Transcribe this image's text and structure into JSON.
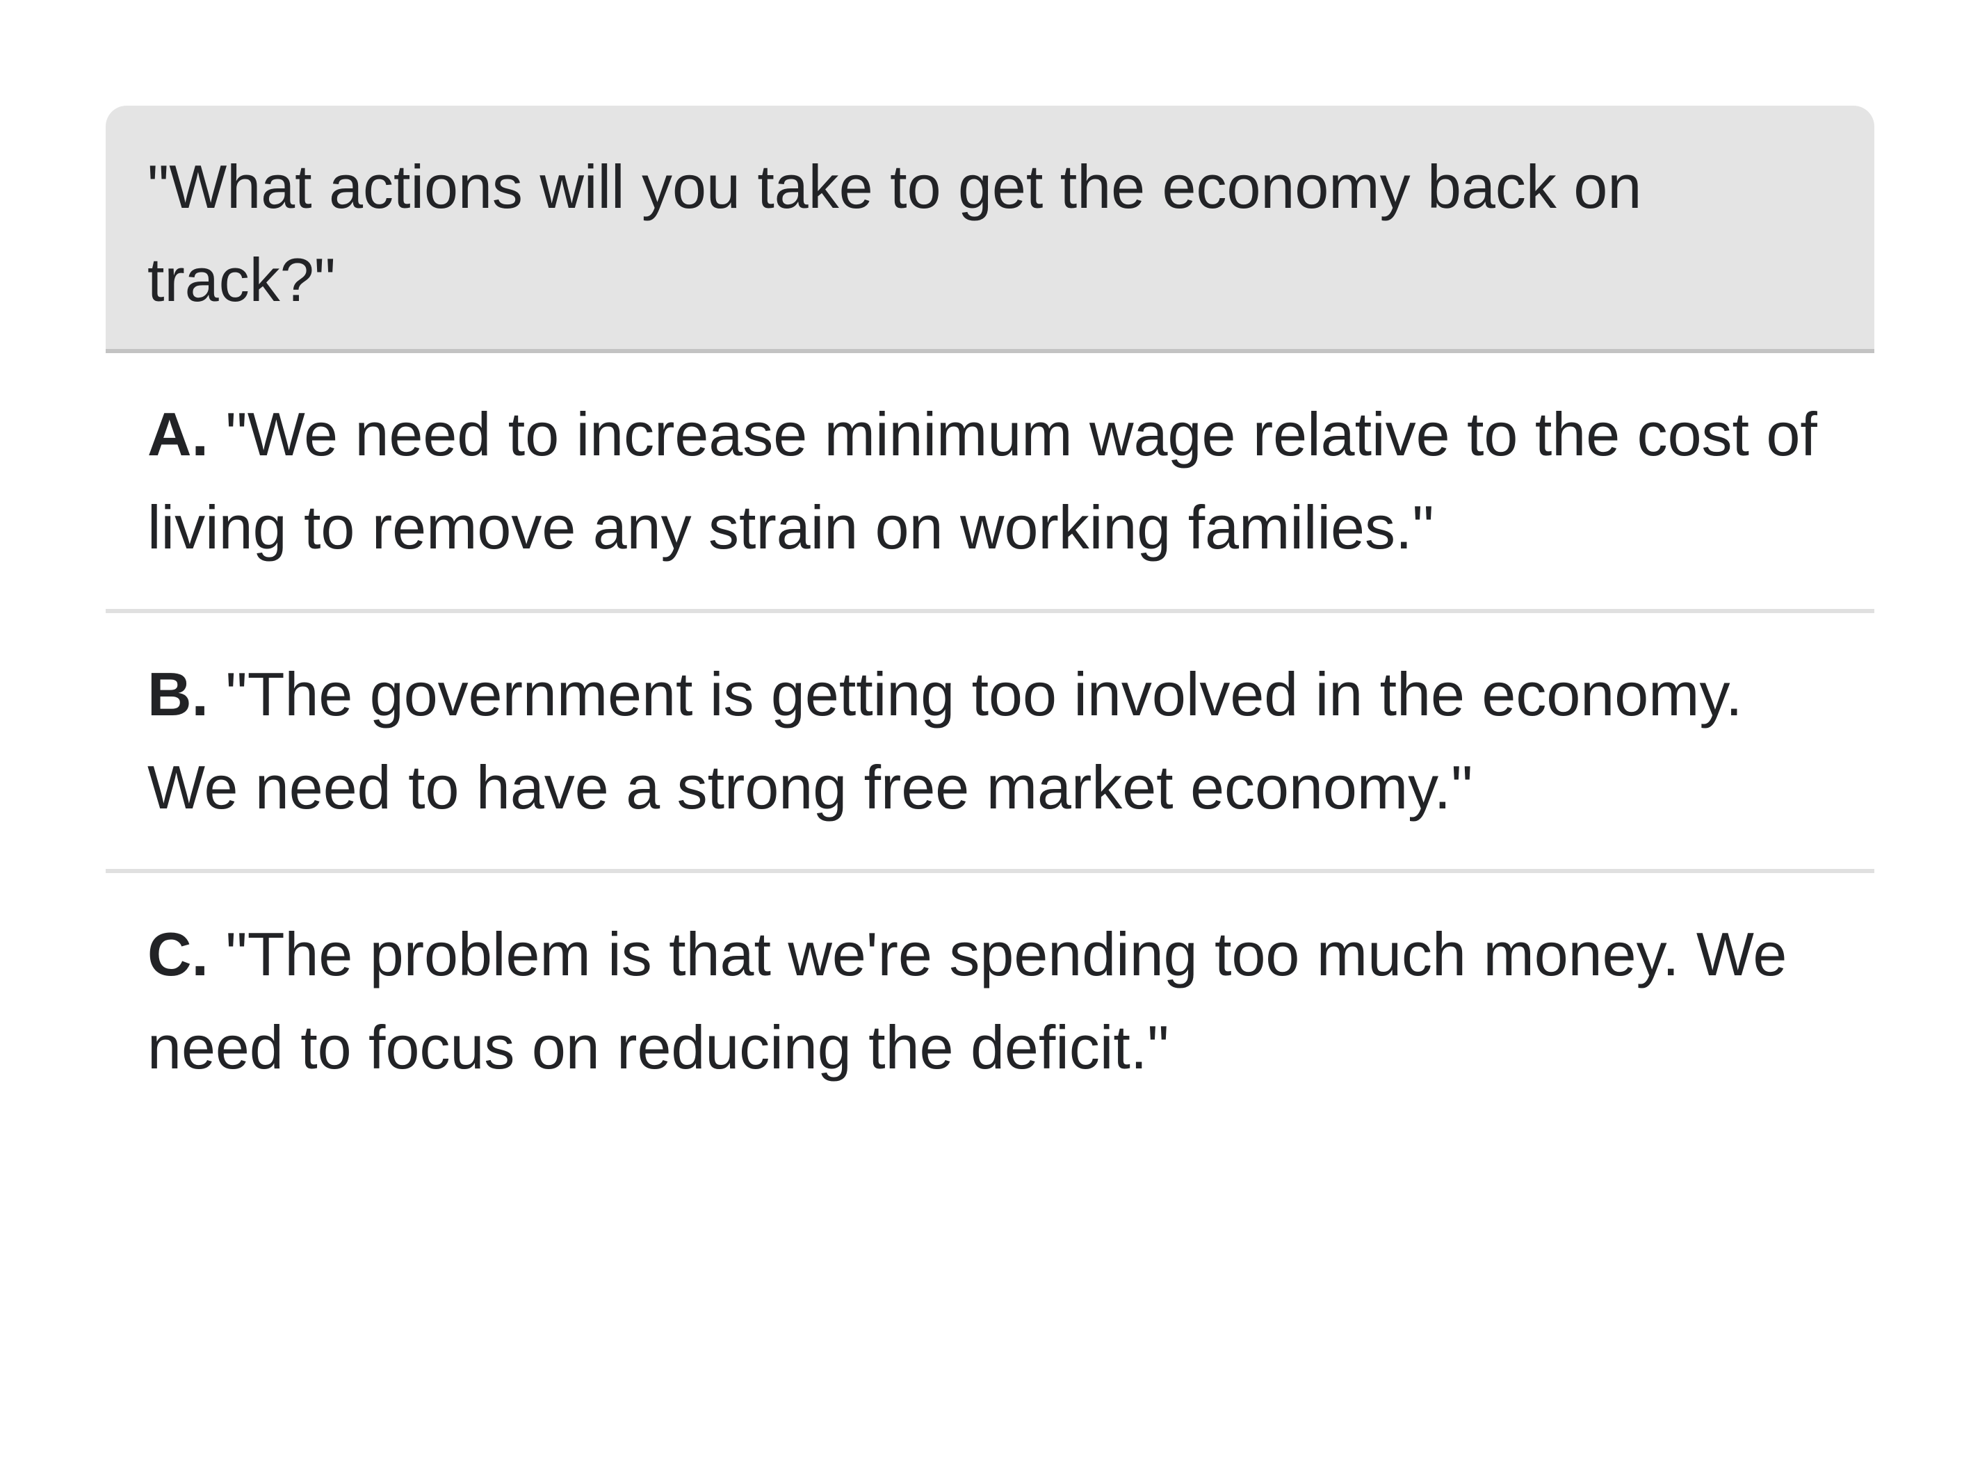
{
  "question": {
    "text": "\"What actions will you take to get the economy back on track?\""
  },
  "options": [
    {
      "letter": "A.",
      "text": "\"We need to increase minimum wage relative to the cost of living to remove any strain on working families.\""
    },
    {
      "letter": "B.",
      "text": "\"The government is getting too involved in the economy. We need to have a strong free market economy.\""
    },
    {
      "letter": "C.",
      "text": "\"The problem is that we're spending too much money. We need to focus on reducing the deficit.\""
    }
  ]
}
